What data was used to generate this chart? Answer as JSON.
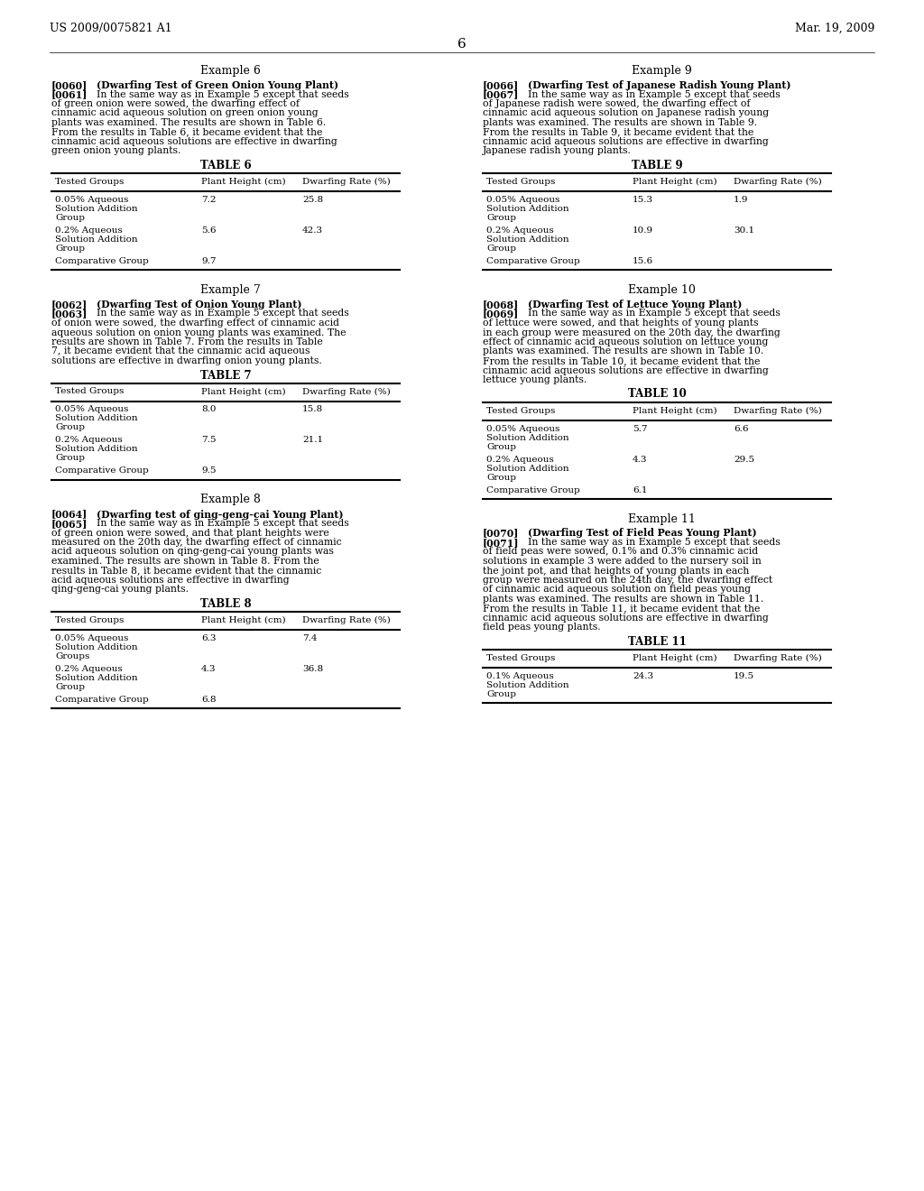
{
  "header_left": "US 2009/0075821 A1",
  "header_right": "Mar. 19, 2009",
  "page_number": "6",
  "background_color": "#ffffff",
  "text_color": "#000000",
  "tables": {
    "t6": {
      "title": "TABLE 6",
      "headers": [
        "Tested Groups",
        "Plant Height (cm)",
        "Dwarfing Rate (%)"
      ],
      "rows": [
        [
          "0.05% Aqueous\nSolution Addition\nGroup",
          "7.2",
          "25.8"
        ],
        [
          "0.2% Aqueous\nSolution Addition\nGroup",
          "5.6",
          "42.3"
        ],
        [
          "Comparative Group",
          "9.7",
          ""
        ]
      ]
    },
    "t7": {
      "title": "TABLE 7",
      "headers": [
        "Tested Groups",
        "Plant Height (cm)",
        "Dwarfing Rate (%)"
      ],
      "rows": [
        [
          "0.05% Aqueous\nSolution Addition\nGroup",
          "8.0",
          "15.8"
        ],
        [
          "0.2% Aqueous\nSolution Addition\nGroup",
          "7.5",
          "21.1"
        ],
        [
          "Comparative Group",
          "9.5",
          ""
        ]
      ]
    },
    "t8": {
      "title": "TABLE 8",
      "headers": [
        "Tested Groups",
        "Plant Height (cm)",
        "Dwarfing Rate (%)"
      ],
      "rows": [
        [
          "0.05% Aqueous\nSolution Addition\nGroups",
          "6.3",
          "7.4"
        ],
        [
          "0.2% Aqueous\nSolution Addition\nGroup",
          "4.3",
          "36.8"
        ],
        [
          "Comparative Group",
          "6.8",
          ""
        ]
      ]
    },
    "t9": {
      "title": "TABLE 9",
      "headers": [
        "Tested Groups",
        "Plant Height (cm)",
        "Dwarfing Rate (%)"
      ],
      "rows": [
        [
          "0.05% Aqueous\nSolution Addition\nGroup",
          "15.3",
          "1.9"
        ],
        [
          "0.2% Aqueous\nSolution Addition\nGroup",
          "10.9",
          "30.1"
        ],
        [
          "Comparative Group",
          "15.6",
          ""
        ]
      ]
    },
    "t10": {
      "title": "TABLE 10",
      "headers": [
        "Tested Groups",
        "Plant Height (cm)",
        "Dwarfing Rate (%)"
      ],
      "rows": [
        [
          "0.05% Aqueous\nSolution Addition\nGroup",
          "5.7",
          "6.6"
        ],
        [
          "0.2% Aqueous\nSolution Addition\nGroup",
          "4.3",
          "29.5"
        ],
        [
          "Comparative Group",
          "6.1",
          ""
        ]
      ]
    },
    "t11": {
      "title": "TABLE 11",
      "headers": [
        "Tested Groups",
        "Plant Height (cm)",
        "Dwarfing Rate (%)"
      ],
      "rows": [
        [
          "0.1% Aqueous\nSolution Addition\nGroup",
          "24.3",
          "19.5"
        ]
      ]
    }
  },
  "paragraphs": {
    "ex6_head": "Example 6",
    "ex7_head": "Example 7",
    "ex8_head": "Example 8",
    "ex9_head": "Example 9",
    "ex10_head": "Example 10",
    "ex11_head": "Example 11",
    "p0060_tag": "[0060]",
    "p0060_bold": "(Dwarfing Test of Green Onion Young Plant)",
    "p0061_tag": "[0061]",
    "p0061_body": "In the same way as in Example 5 except that seeds of green onion were sowed, the dwarfing effect of cinnamic acid aqueous solution on green onion young plants was examined. The results are shown in Table 6. From the results in Table 6, it became evident that the cinnamic acid aqueous solutions are effective in dwarfing green onion young plants.",
    "p0062_tag": "[0062]",
    "p0062_bold": "(Dwarfing Test of Onion Young Plant)",
    "p0063_tag": "[0063]",
    "p0063_body": "In the same way as in Example 5 except that seeds of onion were sowed, the dwarfing effect of cinnamic acid aqueous solution on onion young plants was examined. The results are shown in Table 7. From the results in Table 7, it became evident that the cinnamic acid aqueous solutions are effective in dwarfing onion young plants.",
    "p0064_tag": "[0064]",
    "p0064_bold": "(Dwarfing test of ging-geng-cai Young Plant)",
    "p0065_tag": "[0065]",
    "p0065_body": "In the same way as in Example 5 except that seeds of green onion were sowed, and that plant heights were measured on the 20th day, the dwarfing effect of cinnamic acid aqueous solution on qing-geng-cai young plants was examined. The results are shown in Table 8. From the results in Table 8, it became evident that the cinnamic acid aqueous solutions are effective in dwarfing qing-geng-cai young plants.",
    "p0066_tag": "[0066]",
    "p0066_bold": "(Dwarfing Test of Japanese Radish Young Plant)",
    "p0067_tag": "[0067]",
    "p0067_body": "In the same way as in Example 5 except that seeds of Japanese radish were sowed, the dwarfing effect of cinnamic acid aqueous solution on Japanese radish young plants was examined. The results are shown in Table 9. From the results in Table 9, it became evident that the cinnamic acid aqueous solutions are effective in dwarfing Japanese radish young plants.",
    "p0068_tag": "[0068]",
    "p0068_bold": "(Dwarfing Test of Lettuce Young Plant)",
    "p0069_tag": "[0069]",
    "p0069_body": "In the same way as in Example 5 except that seeds of lettuce were sowed, and that heights of young plants in each group were measured on the 20th day, the dwarfing effect of cinnamic acid aqueous solution on lettuce young plants was examined. The results are shown in Table 10. From the results in Table 10, it became evident that the cinnamic acid aqueous solutions are effective in dwarfing lettuce young plants.",
    "p0070_tag": "[0070]",
    "p0070_bold": "(Dwarfing Test of Field Peas Young Plant)",
    "p0071_tag": "[0071]",
    "p0071_body": "In the same way as in Example 5 except that seeds of field peas were sowed, 0.1% and 0.3% cinnamic acid solutions in example 3 were added to the nursery soil in the joint pot, and that heights of young plants in each group were measured on the 24th day, the dwarfing effect of cinnamic acid aqueous solution on field peas young plants was examined. The results are shown in Table 11. From the results in Table 11, it became evident that the cinnamic acid aqueous solutions are effective in dwarfing field peas young plants."
  }
}
